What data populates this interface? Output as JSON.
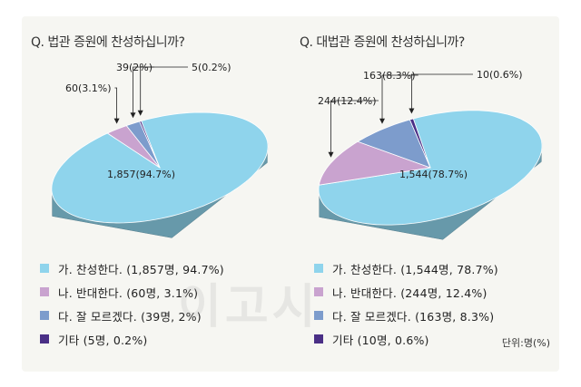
{
  "colors": {
    "panel": "#f6f6f2",
    "agree": "#8fd4ec",
    "oppose": "#c9a3cf",
    "unknown": "#7d9ccc",
    "other": "#4a2f86"
  },
  "unit_label": "단위:명(%)",
  "watermark": "이고시",
  "chart_data": [
    {
      "type": "pie",
      "title": "Q. 법관 증원에 찬성하십니까?",
      "categories": [
        "가. 찬성한다.",
        "나. 반대한다.",
        "다. 잘 모르겠다.",
        "기타"
      ],
      "values": [
        1857,
        60,
        39,
        5
      ],
      "percents": [
        94.7,
        3.1,
        2.0,
        0.2
      ],
      "slice_labels": [
        "1,857(94.7%)",
        "60(3.1%)",
        "39(2%)",
        "5(0.2%)"
      ],
      "legend": [
        "가. 찬성한다. (1,857명, 94.7%)",
        "나. 반대한다. (60명, 3.1%)",
        "다. 잘 모르겠다. (39명, 2%)",
        "기타 (5명, 0.2%)"
      ]
    },
    {
      "type": "pie",
      "title": "Q. 대법관 증원에 찬성하십니까?",
      "categories": [
        "가. 찬성한다.",
        "나. 반대한다.",
        "다. 잘 모르겠다.",
        "기타"
      ],
      "values": [
        1544,
        244,
        163,
        10
      ],
      "percents": [
        78.7,
        12.4,
        8.3,
        0.6
      ],
      "slice_labels": [
        "1,544(78.7%)",
        "244(12.4%)",
        "163(8.3%)",
        "10(0.6%)"
      ],
      "legend": [
        "가. 찬성한다. (1,544명, 78.7%)",
        "나. 반대한다. (244명, 12.4%)",
        "다. 잘 모르겠다. (163명, 8.3%)",
        "기타 (10명, 0.6%)"
      ]
    }
  ]
}
